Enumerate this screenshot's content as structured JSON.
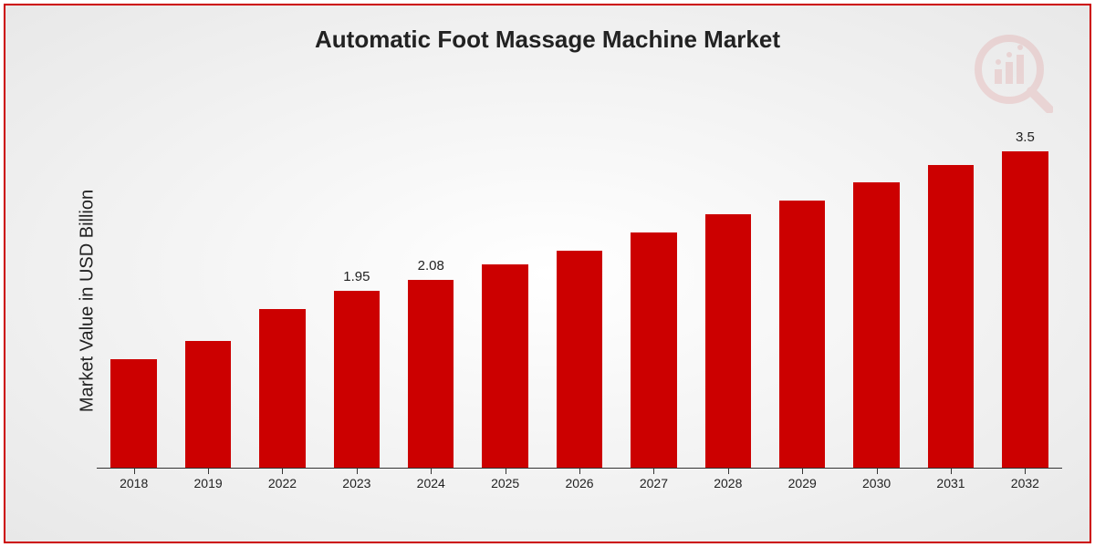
{
  "chart": {
    "type": "bar",
    "title": "Automatic Foot Massage Machine Market",
    "ylabel": "Market Value in USD Billion",
    "title_fontsize": 26,
    "ylabel_fontsize": 20,
    "xlabel_fontsize": 14,
    "value_label_fontsize": 15,
    "background": "radial-gradient #ffffff to #e8e8e8",
    "border_color": "#cc0000",
    "bar_color": "#cc0000",
    "axis_color": "#333333",
    "text_color": "#222222",
    "ylim": [
      0,
      4.0
    ],
    "bar_width_ratio": 0.62,
    "categories": [
      "2018",
      "2019",
      "2022",
      "2023",
      "2024",
      "2025",
      "2026",
      "2027",
      "2028",
      "2029",
      "2030",
      "2031",
      "2032"
    ],
    "values": [
      1.2,
      1.4,
      1.75,
      1.95,
      2.08,
      2.25,
      2.4,
      2.6,
      2.8,
      2.95,
      3.15,
      3.35,
      3.5
    ],
    "shown_value_labels": {
      "3": "1.95",
      "4": "2.08",
      "12": "3.5"
    },
    "watermark": {
      "color": "#cc0000",
      "opacity": 0.1
    }
  }
}
